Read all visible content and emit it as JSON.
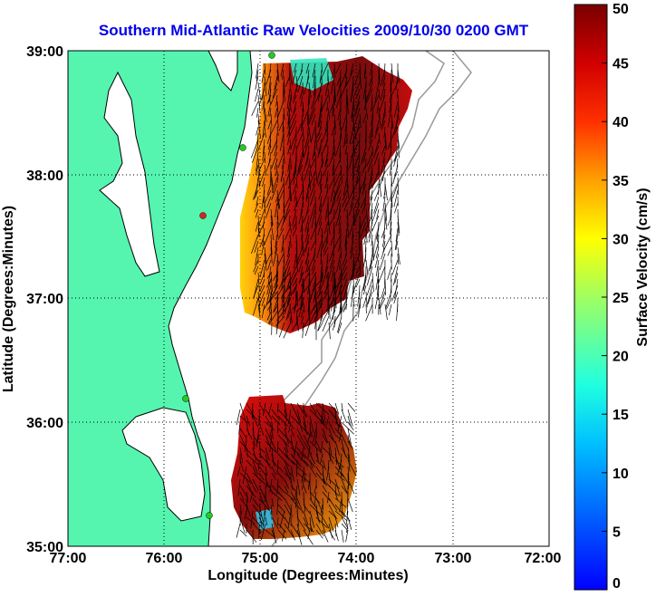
{
  "title": "Southern Mid-Atlantic Raw Velocities 2009/10/30 0200 GMT",
  "map": {
    "xlabel": "Longitude (Degrees:Minutes)",
    "ylabel": "Latitude (Degrees:Minutes)",
    "x_ticks": [
      "77:00",
      "76:00",
      "75:00",
      "74:00",
      "73:00",
      "72:00"
    ],
    "y_ticks": [
      "39:00",
      "38:00",
      "37:00",
      "36:00",
      "35:00"
    ],
    "lon_range": [
      -77,
      -72
    ],
    "lat_range": [
      35,
      39
    ],
    "grid": true,
    "land_color": "#55f5b0",
    "coastline_color": "#000000",
    "bathymetry_color": "#999999"
  },
  "colorbar": {
    "label": "Surface Velocity (cm/s)",
    "ticks": [
      "0",
      "5",
      "10",
      "15",
      "20",
      "25",
      "30",
      "35",
      "40",
      "45",
      "50"
    ],
    "range": [
      0,
      50
    ],
    "colormap": "jet"
  },
  "stations": {
    "colors": {
      "active": "#22cc22",
      "inactive": "#dd2222"
    }
  }
}
